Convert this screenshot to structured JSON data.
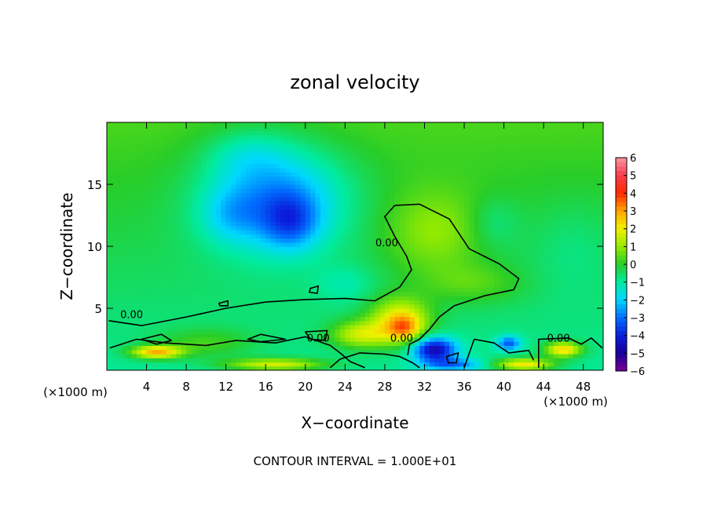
{
  "chart_data": {
    "type": "heatmap",
    "title": "zonal velocity",
    "xlabel": "X−coordinate",
    "ylabel": "Z−coordinate",
    "x_unit_left": "(×1000 m)",
    "x_unit_right": "(×1000 m)",
    "xlim": [
      0,
      50
    ],
    "ylim": [
      0,
      20
    ],
    "x_ticks": [
      4,
      8,
      12,
      16,
      20,
      24,
      28,
      32,
      36,
      40,
      44,
      48
    ],
    "y_ticks": [
      5,
      10,
      15
    ],
    "colorbar": {
      "min": -6,
      "max": 6,
      "tick_values": [
        6,
        5,
        4,
        3,
        2,
        1,
        0,
        -1,
        -2,
        -3,
        -4,
        -5,
        -6
      ],
      "tick_labels": [
        "6",
        "5",
        "4",
        "3",
        "2",
        "1",
        "0",
        "−1",
        "−2",
        "−3",
        "−4",
        "−5",
        "−6"
      ]
    },
    "contour_level_label": "0.00",
    "contour_label_positions": [
      [
        2.5,
        4.2
      ],
      [
        28.2,
        10.0
      ],
      [
        21.3,
        2.3
      ],
      [
        29.7,
        2.3
      ],
      [
        45.5,
        2.3
      ]
    ],
    "contour_interval_text": "CONTOUR INTERVAL = 1.000E+01",
    "blobs": [
      {
        "x": 17.0,
        "z": 14.0,
        "rx": 7.0,
        "rz": 4.3,
        "v": -2.6
      },
      {
        "x": 18.5,
        "z": 12.0,
        "rx": 2.8,
        "rz": 2.2,
        "v": -1.8
      },
      {
        "x": 12.5,
        "z": 12.5,
        "rx": 3.0,
        "rz": 2.2,
        "v": -0.9
      },
      {
        "x": 14.0,
        "z": 17.5,
        "rx": 4.0,
        "rz": 2.0,
        "v": -0.7
      },
      {
        "x": 33.0,
        "z": 11.0,
        "rx": 5.0,
        "rz": 3.5,
        "v": 1.2
      },
      {
        "x": 37.0,
        "z": 7.0,
        "rx": 5.0,
        "rz": 1.6,
        "v": 0.8
      },
      {
        "x": 29.5,
        "z": 4.0,
        "rx": 3.0,
        "rz": 1.8,
        "v": 2.8
      },
      {
        "x": 30.0,
        "z": 3.4,
        "rx": 1.6,
        "rz": 1.0,
        "v": 1.8
      },
      {
        "x": 25.5,
        "z": 2.9,
        "rx": 3.0,
        "rz": 1.1,
        "v": 2.2
      },
      {
        "x": 5.0,
        "z": 1.5,
        "rx": 2.5,
        "rz": 0.5,
        "v": 3.5
      },
      {
        "x": 10.0,
        "z": 2.2,
        "rx": 5.0,
        "rz": 1.2,
        "v": 1.0
      },
      {
        "x": 33.0,
        "z": 1.7,
        "rx": 2.2,
        "rz": 1.0,
        "v": -4.0
      },
      {
        "x": 40.5,
        "z": 2.2,
        "rx": 1.2,
        "rz": 0.6,
        "v": -2.5
      },
      {
        "x": 46.0,
        "z": 1.7,
        "rx": 1.8,
        "rz": 0.6,
        "v": 3.2
      },
      {
        "x": 35.0,
        "z": 0.5,
        "rx": 3.0,
        "rz": 0.5,
        "v": -2.0
      },
      {
        "x": 17.0,
        "z": 0.5,
        "rx": 5.0,
        "rz": 0.5,
        "v": 2.5
      },
      {
        "x": 42.0,
        "z": 0.5,
        "rx": 3.0,
        "rz": 0.5,
        "v": 3.0
      },
      {
        "x": 24.0,
        "z": 7.0,
        "rx": 3.0,
        "rz": 1.5,
        "v": -0.6
      },
      {
        "x": 39.0,
        "z": 12.0,
        "rx": 2.5,
        "rz": 2.0,
        "v": -0.6
      },
      {
        "x": 47.0,
        "z": 10.0,
        "rx": 4.0,
        "rz": 4.0,
        "v": -0.4
      }
    ],
    "zero_contours": [
      {
        "closed": false,
        "points": [
          [
            0.2,
            4.0
          ],
          [
            3.5,
            3.6
          ],
          [
            8,
            4.3
          ],
          [
            12,
            5.0
          ],
          [
            16,
            5.5
          ],
          [
            20,
            5.7
          ],
          [
            24,
            5.8
          ],
          [
            27,
            5.6
          ],
          [
            29.5,
            6.7
          ],
          [
            30.7,
            8.1
          ],
          [
            30.2,
            9.2
          ],
          [
            29.0,
            10.8
          ],
          [
            28.0,
            12.4
          ],
          [
            29.0,
            13.3
          ],
          [
            31.5,
            13.4
          ],
          [
            34.5,
            12.2
          ],
          [
            36.5,
            9.8
          ],
          [
            39.5,
            8.6
          ],
          [
            41.5,
            7.4
          ],
          [
            41.0,
            6.5
          ],
          [
            38,
            6.0
          ],
          [
            35,
            5.2
          ],
          [
            33.5,
            4.3
          ],
          [
            32.5,
            3.3
          ],
          [
            31.5,
            2.5
          ],
          [
            30.5,
            2.1
          ],
          [
            30.3,
            1.2
          ]
        ]
      },
      {
        "closed": false,
        "points": [
          [
            0.3,
            1.8
          ],
          [
            3,
            2.5
          ],
          [
            6,
            2.2
          ],
          [
            10,
            2.0
          ],
          [
            13,
            2.4
          ],
          [
            17,
            2.2
          ],
          [
            20,
            2.7
          ],
          [
            22.5,
            2.0
          ],
          [
            23.5,
            1.4
          ],
          [
            24.5,
            0.7
          ],
          [
            26,
            0.2
          ]
        ]
      },
      {
        "closed": false,
        "points": [
          [
            22.5,
            0.2
          ],
          [
            23.5,
            0.9
          ],
          [
            25.5,
            1.4
          ],
          [
            28.0,
            1.3
          ],
          [
            29.5,
            1.1
          ],
          [
            30.8,
            0.6
          ],
          [
            31.5,
            0.2
          ]
        ]
      },
      {
        "closed": true,
        "points": [
          [
            3.5,
            2.5
          ],
          [
            5.5,
            2.9
          ],
          [
            6.5,
            2.4
          ],
          [
            5.0,
            2.1
          ]
        ]
      },
      {
        "closed": true,
        "points": [
          [
            14.2,
            2.5
          ],
          [
            15.5,
            2.9
          ],
          [
            18.0,
            2.5
          ],
          [
            15.5,
            2.3
          ]
        ]
      },
      {
        "closed": true,
        "points": [
          [
            20.0,
            3.1
          ],
          [
            22.2,
            3.2
          ],
          [
            22.0,
            2.4
          ],
          [
            20.5,
            2.5
          ]
        ]
      },
      {
        "closed": true,
        "points": [
          [
            20.5,
            6.6
          ],
          [
            21.3,
            6.8
          ],
          [
            21.2,
            6.2
          ],
          [
            20.4,
            6.3
          ]
        ]
      },
      {
        "closed": true,
        "points": [
          [
            11.3,
            5.4
          ],
          [
            12.2,
            5.6
          ],
          [
            12.2,
            5.2
          ],
          [
            11.4,
            5.2
          ]
        ]
      },
      {
        "closed": false,
        "points": [
          [
            43.5,
            0.2
          ],
          [
            43.5,
            2.5
          ],
          [
            46.5,
            2.6
          ],
          [
            47.8,
            2.1
          ],
          [
            48.8,
            2.6
          ],
          [
            49.9,
            1.8
          ]
        ]
      },
      {
        "closed": false,
        "points": [
          [
            36.0,
            0.2
          ],
          [
            37.0,
            2.5
          ],
          [
            39.0,
            2.2
          ],
          [
            40.5,
            1.4
          ],
          [
            42.5,
            1.6
          ],
          [
            43.0,
            0.8
          ]
        ]
      },
      {
        "closed": true,
        "points": [
          [
            34.2,
            1.1
          ],
          [
            35.4,
            1.4
          ],
          [
            35.2,
            0.6
          ],
          [
            34.4,
            0.6
          ]
        ]
      }
    ]
  }
}
